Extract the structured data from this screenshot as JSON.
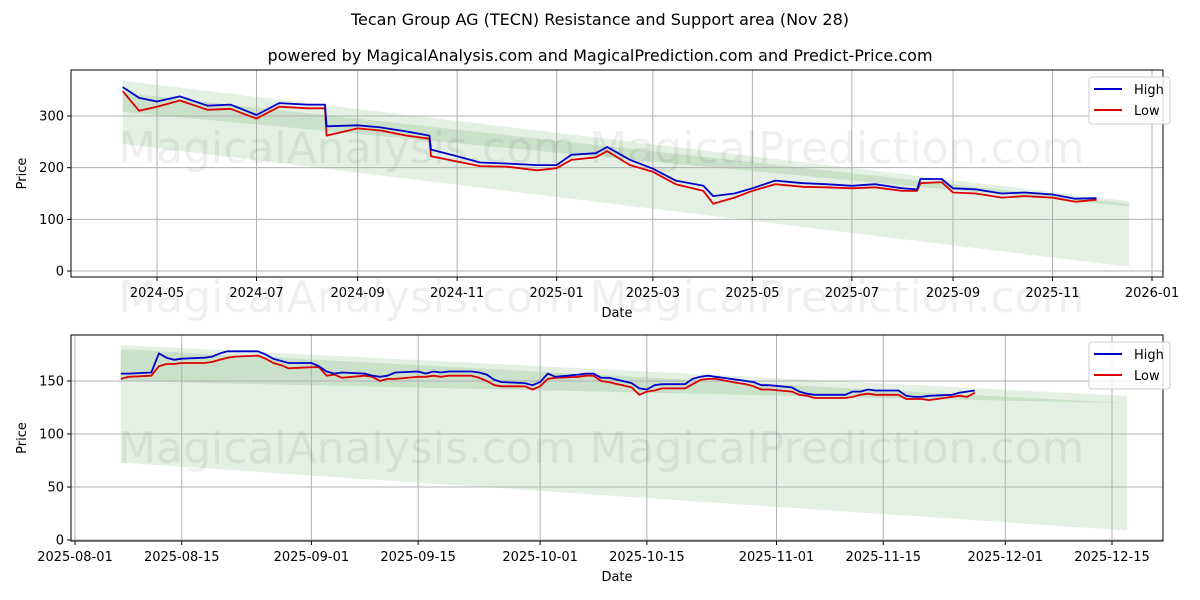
{
  "title": "Tecan Group AG (TECN) Resistance and Support area (Nov 28)",
  "subtitle": "powered by MagicalAnalysis.com and MagicalPrediction.com and Predict-Price.com",
  "watermarks": [
    "MagicalAnalysis.com",
    "MagicalPrediction.com"
  ],
  "colors": {
    "high": "#0000cc",
    "low": "#dd0000",
    "band": "#2e8b2e"
  },
  "legend": {
    "high": "High",
    "low": "Low"
  },
  "chart_data": [
    {
      "type": "line",
      "title": "Top panel: full history",
      "xlabel": "Date",
      "ylabel": "Price",
      "ylim": [
        -8,
        380
      ],
      "yticks": [
        0,
        100,
        200,
        300
      ],
      "xticks": [
        "2024-05",
        "2024-07",
        "2024-09",
        "2024-11",
        "2025-01",
        "2025-03",
        "2025-05",
        "2025-07",
        "2025-09",
        "2025-11",
        "2026-01"
      ],
      "grid": true,
      "legend_position": "upper right",
      "x": [
        "2024-04-10",
        "2024-04-20",
        "2024-05-01",
        "2024-05-15",
        "2024-06-01",
        "2024-06-15",
        "2024-07-01",
        "2024-07-15",
        "2024-08-01",
        "2024-08-12",
        "2024-08-13",
        "2024-09-01",
        "2024-09-15",
        "2024-10-01",
        "2024-10-15",
        "2024-10-16",
        "2024-11-01",
        "2024-11-15",
        "2024-12-01",
        "2024-12-20",
        "2025-01-01",
        "2025-01-10",
        "2025-01-25",
        "2025-02-01",
        "2025-02-15",
        "2025-03-01",
        "2025-03-15",
        "2025-04-01",
        "2025-04-07",
        "2025-04-20",
        "2025-05-01",
        "2025-05-15",
        "2025-06-01",
        "2025-06-15",
        "2025-07-01",
        "2025-07-15",
        "2025-08-01",
        "2025-08-10",
        "2025-08-12",
        "2025-08-25",
        "2025-09-01",
        "2025-09-15",
        "2025-10-01",
        "2025-10-15",
        "2025-11-01",
        "2025-11-15",
        "2025-11-28"
      ],
      "series": [
        {
          "name": "High",
          "values": [
            356,
            335,
            328,
            338,
            320,
            322,
            302,
            325,
            322,
            322,
            280,
            282,
            278,
            270,
            262,
            235,
            222,
            210,
            208,
            205,
            205,
            225,
            228,
            240,
            215,
            198,
            175,
            165,
            145,
            150,
            160,
            175,
            170,
            168,
            165,
            168,
            160,
            158,
            178,
            178,
            160,
            158,
            150,
            152,
            148,
            140,
            141
          ]
        },
        {
          "name": "Low",
          "values": [
            348,
            310,
            318,
            330,
            312,
            314,
            295,
            318,
            315,
            315,
            262,
            276,
            272,
            262,
            256,
            222,
            212,
            203,
            202,
            195,
            199,
            215,
            220,
            232,
            205,
            192,
            168,
            155,
            130,
            142,
            155,
            168,
            163,
            162,
            160,
            162,
            155,
            155,
            170,
            172,
            152,
            150,
            142,
            145,
            142,
            134,
            138
          ]
        }
      ],
      "support_resistance_bands": {
        "x_range": [
          "2024-04-10",
          "2025-12-18"
        ],
        "outer": {
          "upper": [
            368,
            135
          ],
          "lower": [
            246,
            8
          ]
        },
        "inner": {
          "upper": [
            345,
            130
          ],
          "lower": [
            308,
            125
          ]
        }
      }
    },
    {
      "type": "line",
      "title": "Bottom panel: recent zoom",
      "xlabel": "Date",
      "ylabel": "Price",
      "ylim": [
        -2,
        193
      ],
      "yticks": [
        0,
        50,
        100,
        150
      ],
      "xticks": [
        "2025-08-01",
        "2025-08-15",
        "2025-09-01",
        "2025-09-15",
        "2025-10-01",
        "2025-10-15",
        "2025-11-01",
        "2025-11-15",
        "2025-12-01",
        "2025-12-15"
      ],
      "grid": true,
      "legend_position": "upper right",
      "x": [
        "2025-08-07",
        "2025-08-08",
        "2025-08-11",
        "2025-08-12",
        "2025-08-13",
        "2025-08-14",
        "2025-08-15",
        "2025-08-18",
        "2025-08-19",
        "2025-08-20",
        "2025-08-21",
        "2025-08-22",
        "2025-08-25",
        "2025-08-26",
        "2025-08-27",
        "2025-08-28",
        "2025-08-29",
        "2025-09-01",
        "2025-09-02",
        "2025-09-03",
        "2025-09-04",
        "2025-09-05",
        "2025-09-08",
        "2025-09-09",
        "2025-09-10",
        "2025-09-11",
        "2025-09-12",
        "2025-09-15",
        "2025-09-16",
        "2025-09-17",
        "2025-09-18",
        "2025-09-19",
        "2025-09-22",
        "2025-09-23",
        "2025-09-24",
        "2025-09-25",
        "2025-09-26",
        "2025-09-29",
        "2025-09-30",
        "2025-10-01",
        "2025-10-02",
        "2025-10-03",
        "2025-10-06",
        "2025-10-07",
        "2025-10-08",
        "2025-10-09",
        "2025-10-10",
        "2025-10-13",
        "2025-10-14",
        "2025-10-15",
        "2025-10-16",
        "2025-10-17",
        "2025-10-20",
        "2025-10-21",
        "2025-10-22",
        "2025-10-23",
        "2025-10-24",
        "2025-10-27",
        "2025-10-28",
        "2025-10-29",
        "2025-10-30",
        "2025-10-31",
        "2025-11-03",
        "2025-11-04",
        "2025-11-05",
        "2025-11-06",
        "2025-11-07",
        "2025-11-10",
        "2025-11-11",
        "2025-11-12",
        "2025-11-13",
        "2025-11-14",
        "2025-11-17",
        "2025-11-18",
        "2025-11-19",
        "2025-11-20",
        "2025-11-21",
        "2025-11-24",
        "2025-11-25",
        "2025-11-26",
        "2025-11-27"
      ],
      "series": [
        {
          "name": "High",
          "values": [
            157,
            157,
            158,
            176,
            172,
            170,
            171,
            172,
            173,
            176,
            178,
            178,
            178,
            175,
            171,
            169,
            167,
            167,
            164,
            159,
            157,
            158,
            157,
            155,
            154,
            155,
            158,
            159,
            157,
            159,
            158,
            159,
            159,
            158,
            156,
            151,
            149,
            148,
            146,
            149,
            157,
            154,
            156,
            157,
            157,
            153,
            153,
            148,
            143,
            142,
            146,
            147,
            147,
            152,
            154,
            155,
            154,
            151,
            150,
            149,
            146,
            146,
            144,
            140,
            138,
            137,
            137,
            137,
            140,
            140,
            142,
            141,
            141,
            136,
            135,
            135,
            136,
            137,
            139,
            140,
            141
          ]
        },
        {
          "name": "Low",
          "values": [
            152,
            154,
            155,
            164,
            166,
            166,
            167,
            167,
            168,
            170,
            172,
            173,
            174,
            171,
            167,
            165,
            162,
            163,
            163,
            155,
            156,
            153,
            155,
            154,
            150,
            152,
            152,
            154,
            154,
            155,
            154,
            155,
            155,
            153,
            150,
            146,
            145,
            145,
            142,
            145,
            152,
            153,
            154,
            155,
            155,
            150,
            149,
            144,
            137,
            140,
            141,
            143,
            143,
            147,
            151,
            152,
            152,
            148,
            147,
            145,
            142,
            142,
            140,
            137,
            136,
            134,
            134,
            134,
            135,
            137,
            138,
            137,
            137,
            133,
            133,
            133,
            132,
            135,
            136,
            135,
            139
          ]
        }
      ],
      "support_resistance_bands": {
        "x_range": [
          "2025-08-07",
          "2025-12-17"
        ],
        "outer": {
          "upper": [
            184,
            136
          ],
          "lower": [
            73,
            9
          ]
        },
        "inner": {
          "upper": [
            180,
            129
          ],
          "lower": [
            150,
            129
          ]
        }
      }
    }
  ]
}
